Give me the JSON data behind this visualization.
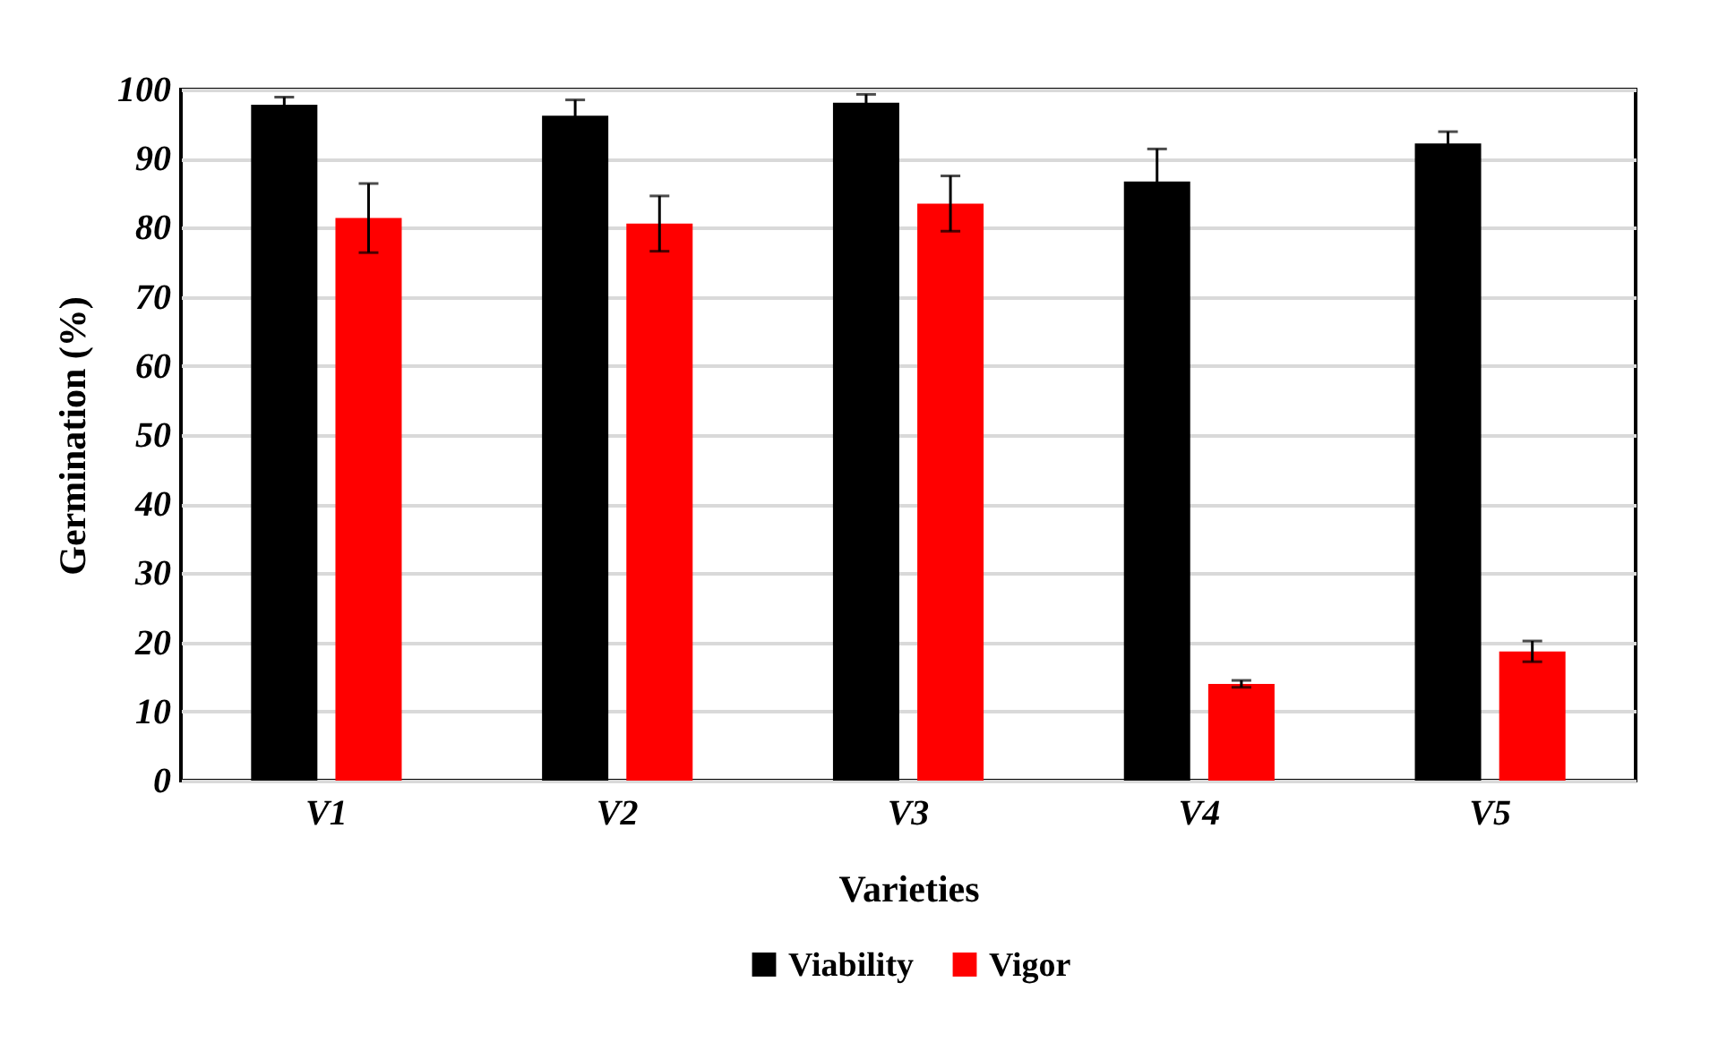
{
  "chart_data": {
    "type": "bar",
    "xlabel": "Varieties",
    "ylabel": "Germination (%)",
    "categories": [
      "V1",
      "V2",
      "V3",
      "V4",
      "V5"
    ],
    "series": [
      {
        "name": "Viability",
        "color": "#000000",
        "values": [
          97.8,
          96.2,
          98.1,
          86.7,
          92.2
        ],
        "errors": [
          1.1,
          2.3,
          1.2,
          4.7,
          1.7
        ]
      },
      {
        "name": "Vigor",
        "color": "#ff0000",
        "values": [
          81.4,
          80.6,
          83.5,
          14,
          18.7
        ],
        "errors": [
          5,
          4,
          4,
          0.5,
          1.5
        ]
      }
    ],
    "ylim": [
      0,
      100
    ],
    "yticks": [
      0,
      10,
      20,
      30,
      40,
      50,
      60,
      70,
      80,
      90,
      100
    ],
    "grid": "y",
    "legend": "bottom"
  }
}
